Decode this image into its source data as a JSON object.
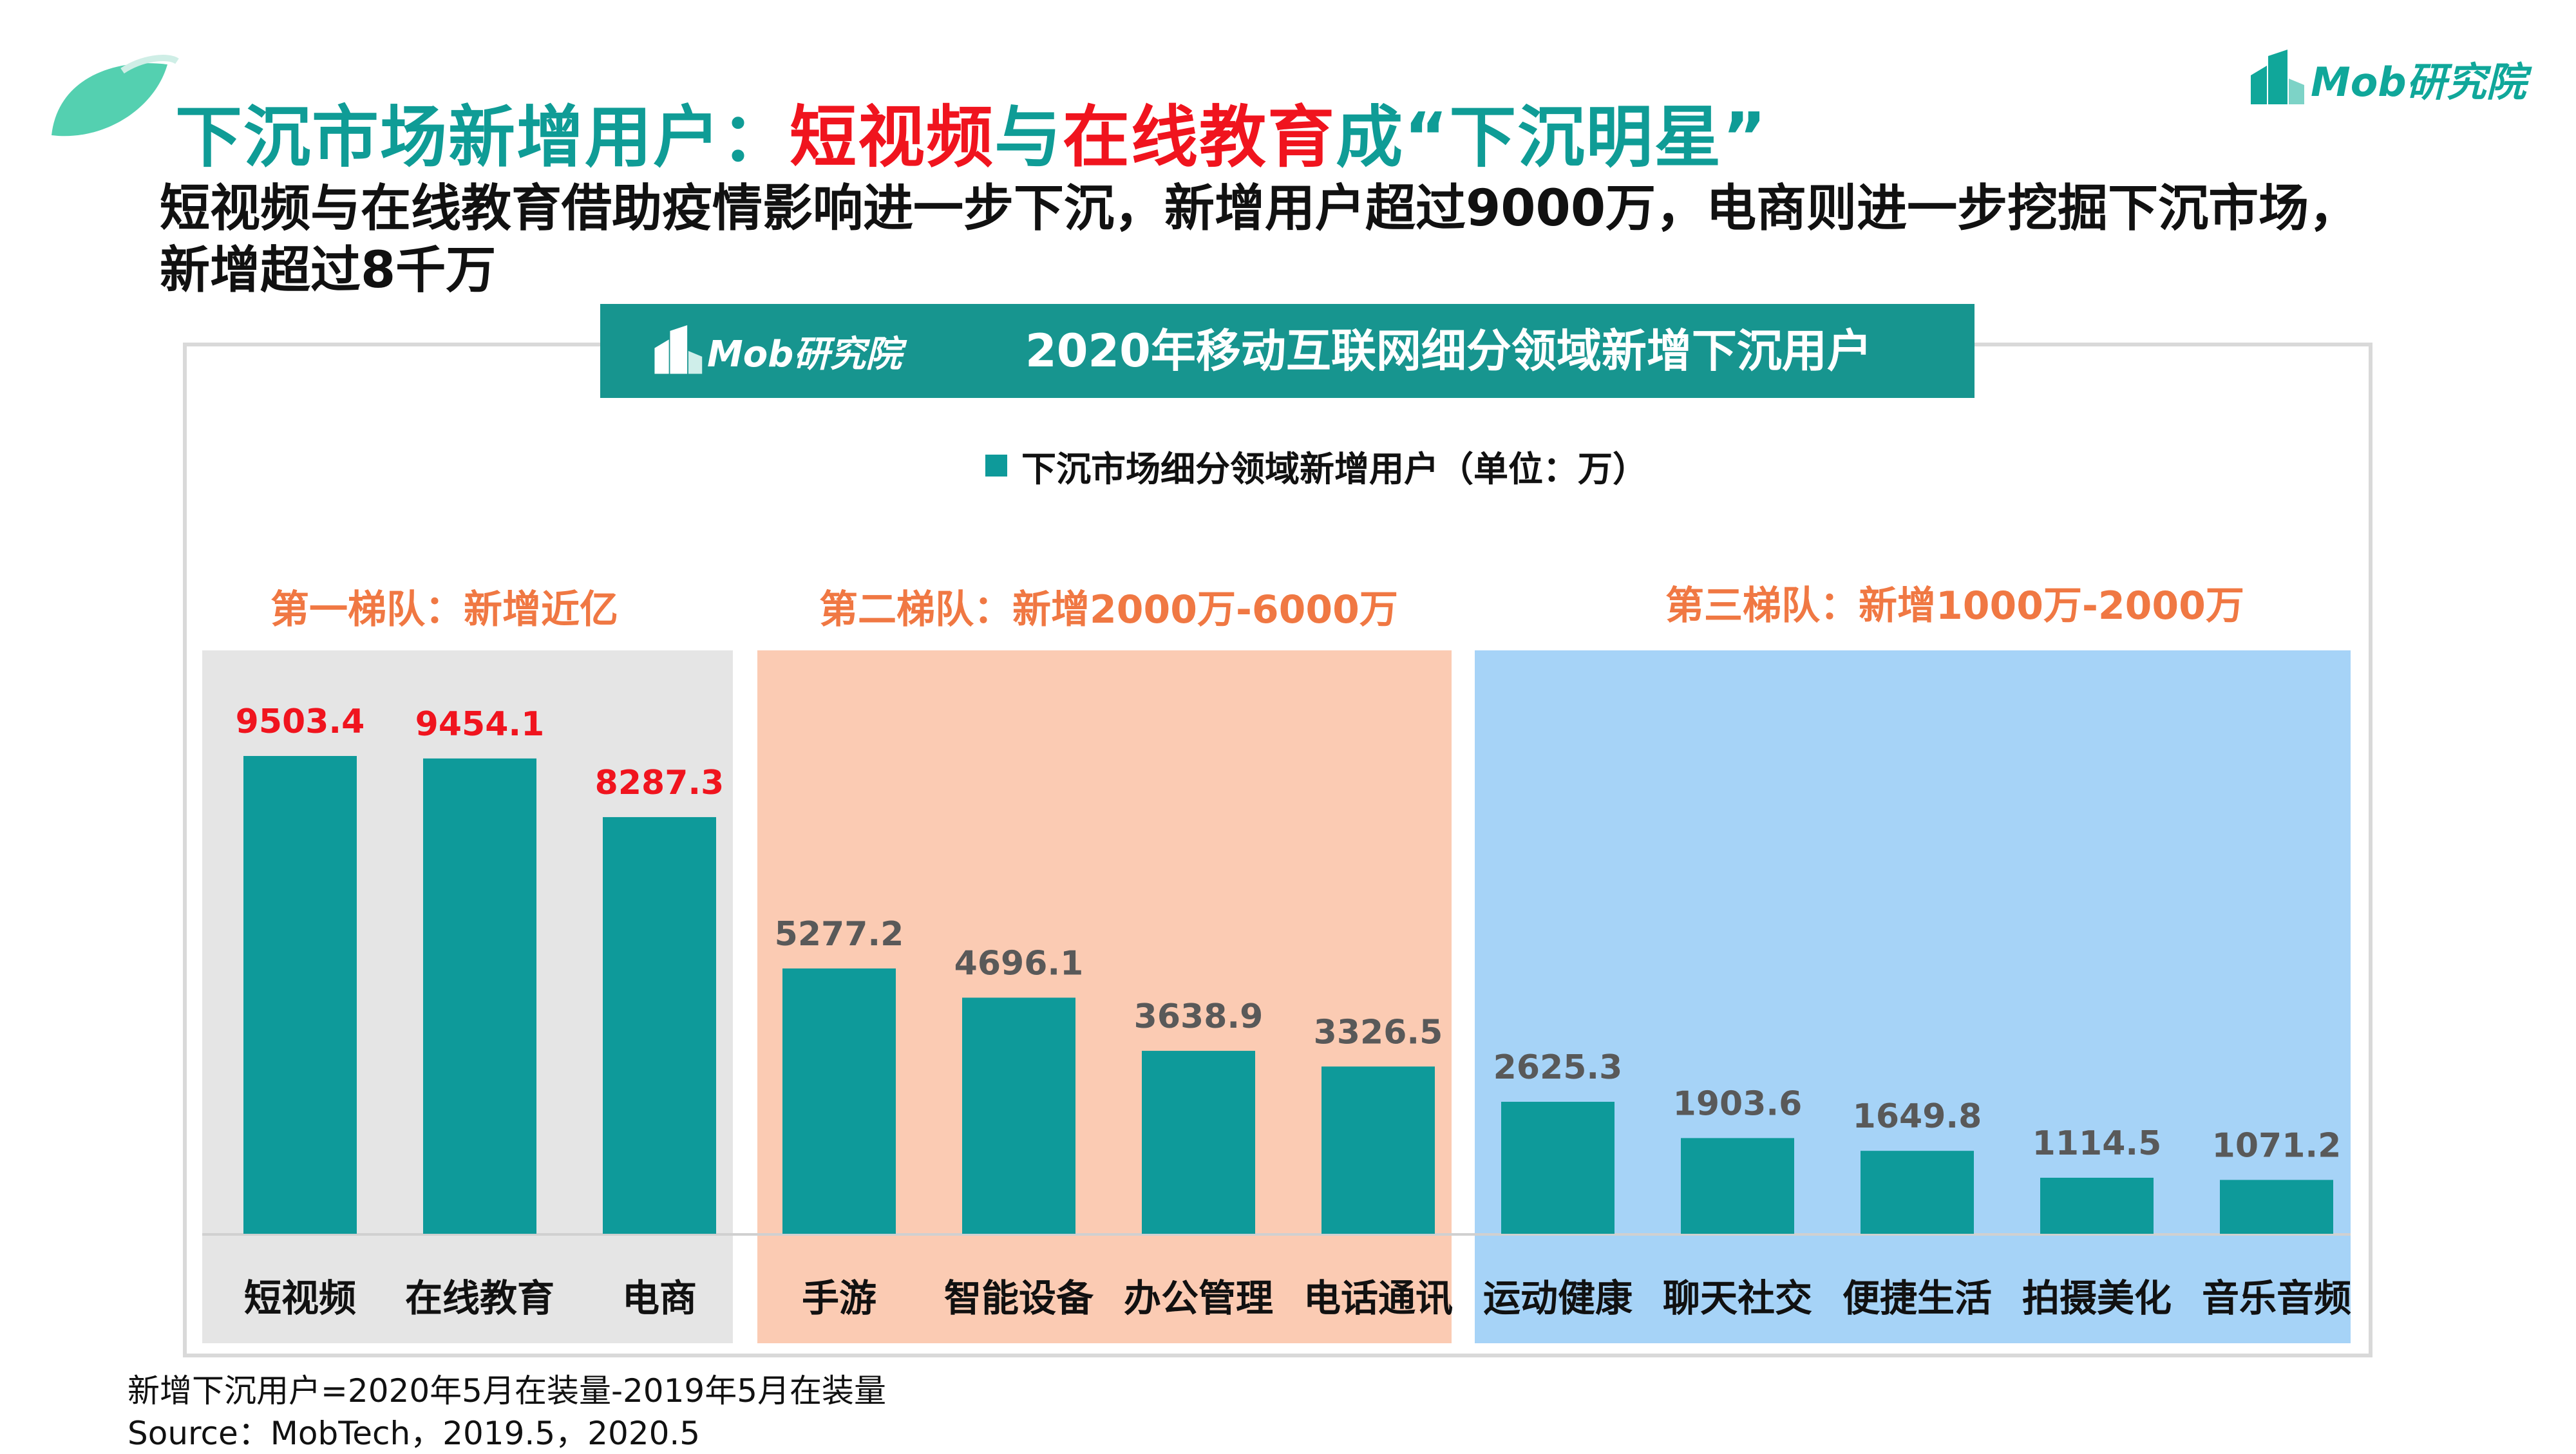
{
  "header": {
    "title_part1": "下沉市场新增用户：",
    "title_red1": "短视频",
    "title_part2": "与",
    "title_red2": "在线教育",
    "title_part3": "成“下沉明星”",
    "subtitle": "短视频与在线教育借助疫情影响进一步下沉，新增用户超过9000万，电商则进一步挖掘下沉市场，新增超过8千万",
    "brand": "Mob研究院"
  },
  "chart_banner": {
    "brand": "Mob研究院",
    "title": "2020年移动互联网细分领域新增下沉用户"
  },
  "tiers": [
    {
      "label": "第一梯队：新增近亿"
    },
    {
      "label": "第二梯队：新增2000万-6000万"
    },
    {
      "label": "第三梯队：新增1000万-2000万"
    }
  ],
  "chart_data": {
    "type": "bar",
    "title": "2020年移动互联网细分领域新增下沉用户",
    "categories": [
      "短视频",
      "在线教育",
      "电商",
      "手游",
      "智能设备",
      "办公管理",
      "电话通讯",
      "运动健康",
      "聊天社交",
      "便捷生活",
      "拍摄美化",
      "音乐音频"
    ],
    "series": [
      {
        "name": "下沉市场细分领域新增用户（单位：万）",
        "values": [
          9503.4,
          9454.1,
          8287.3,
          5277.2,
          4696.1,
          3638.9,
          3326.5,
          2625.3,
          1903.6,
          1649.8,
          1114.5,
          1071.2
        ]
      }
    ],
    "value_labels": [
      "9503.4",
      "9454.1",
      "8287.3",
      "5277.2",
      "4696.1",
      "3638.9",
      "3326.5",
      "2625.3",
      "1903.6",
      "1649.8",
      "1114.5",
      "1071.2"
    ],
    "label_colors": [
      "#f0141e",
      "#f0141e",
      "#f0141e",
      "#595959",
      "#595959",
      "#595959",
      "#595959",
      "#595959",
      "#595959",
      "#595959",
      "#595959",
      "#595959"
    ],
    "ylim": [
      0,
      9503.4
    ],
    "legend": "top-center",
    "grid": false,
    "bar_color": "#0e9a9a"
  },
  "footer": {
    "note": "新增下沉用户=2020年5月在装量-2019年5月在装量",
    "source": "Source：MobTech，2019.5，2020.5"
  },
  "colors": {
    "teal": "#0f9c96",
    "red": "#f0141e",
    "tier_orange": "#f07843",
    "panel_gray": "#e5e5e5",
    "panel_salmon": "#fbcbb3",
    "panel_blue": "#a6d3f7",
    "banner": "#17958f"
  }
}
